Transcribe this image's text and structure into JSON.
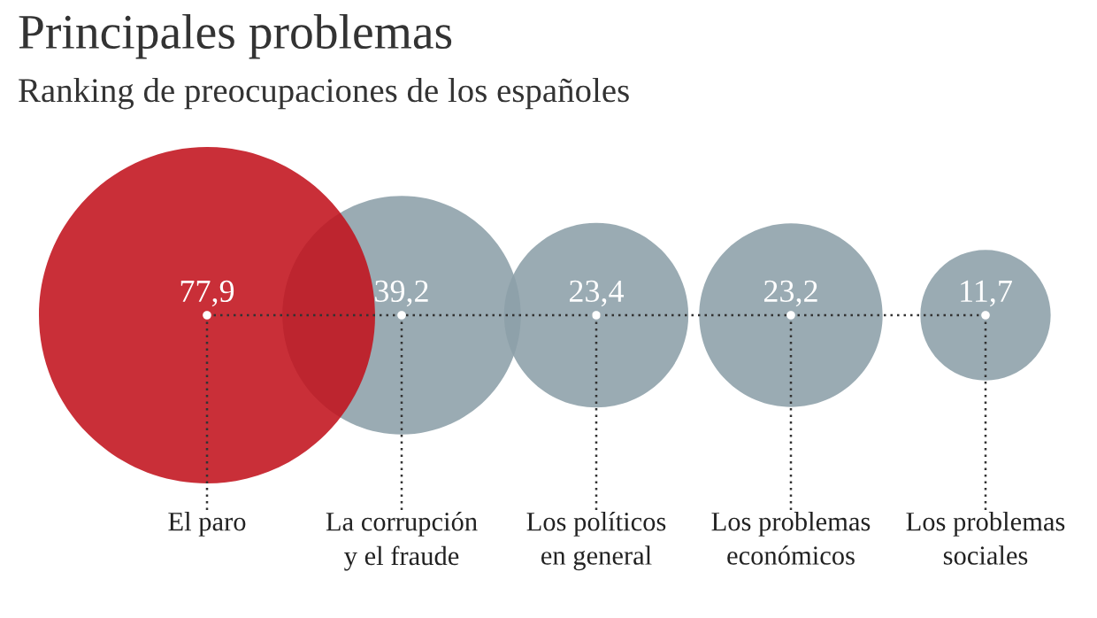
{
  "chart_data": {
    "type": "other",
    "title": "Principales problemas",
    "subtitle": "Ranking de preocupaciones de los españoles",
    "categories": [
      "El paro",
      "La corrupción\ny el fraude",
      "Los políticos\nen general",
      "Los problemas\neconómicos",
      "Los problemas\nsociales"
    ],
    "values": [
      77.9,
      39.2,
      23.4,
      23.2,
      11.7
    ],
    "value_labels": [
      "77,9",
      "39,2",
      "23,4",
      "23,2",
      "11,7"
    ],
    "colors": [
      "#c1121c",
      "#8c9fa9",
      "#8c9fa9",
      "#8c9fa9",
      "#8c9fa9"
    ]
  }
}
